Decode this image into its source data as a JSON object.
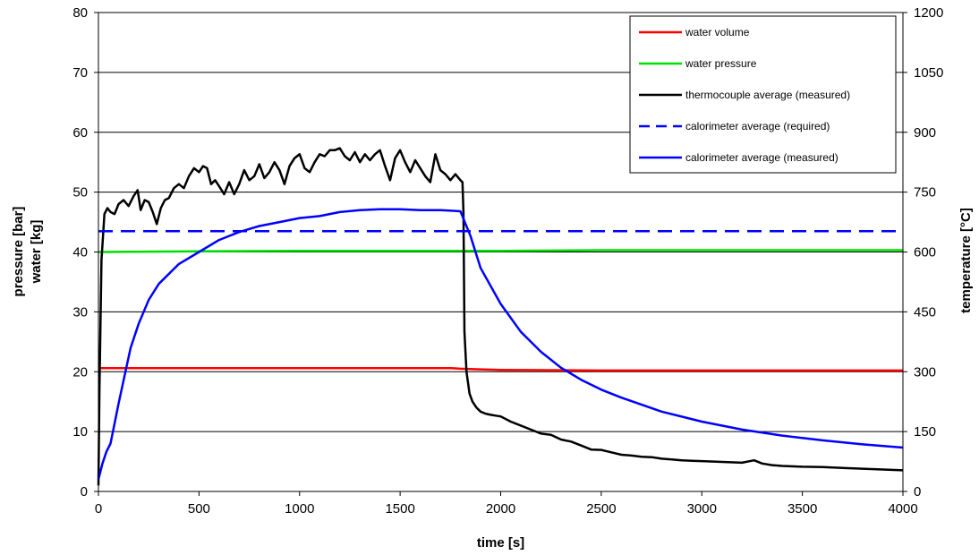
{
  "chart_data": {
    "type": "line",
    "title": "",
    "xlabel": "time [s]",
    "ylabel_left_lines": [
      "pressure [bar]",
      "water [kg]"
    ],
    "ylabel_right": "temperature [°C]",
    "xlim": [
      0,
      4000
    ],
    "ylim_left": [
      0,
      80
    ],
    "ylim_right": [
      0,
      1200
    ],
    "x_ticks": [
      "0",
      "500",
      "1000",
      "1500",
      "2000",
      "2500",
      "3000",
      "3500",
      "4000"
    ],
    "y_left_ticks": [
      "0",
      "10",
      "20",
      "30",
      "40",
      "50",
      "60",
      "70",
      "80"
    ],
    "y_right_ticks": [
      "0",
      "150",
      "300",
      "450",
      "600",
      "750",
      "900",
      "1050",
      "1200"
    ],
    "grid": "horizontal",
    "legend_position": "top-right",
    "series": [
      {
        "name": "water volume",
        "axis": "left",
        "color": "#ff0000",
        "dash": "solid",
        "x": [
          0,
          20,
          500,
          1000,
          1500,
          1750,
          1800,
          1900,
          2000,
          2500,
          3000,
          3500,
          4000
        ],
        "y": [
          20.6,
          20.6,
          20.6,
          20.6,
          20.6,
          20.6,
          20.5,
          20.4,
          20.3,
          20.2,
          20.2,
          20.2,
          20.2
        ]
      },
      {
        "name": "water pressure",
        "axis": "left",
        "color": "#00e000",
        "dash": "solid",
        "x": [
          0,
          20,
          500,
          1000,
          1500,
          2000,
          2500,
          3000,
          3500,
          4000
        ],
        "y": [
          40.0,
          40.0,
          40.1,
          40.2,
          40.2,
          40.2,
          40.3,
          40.3,
          40.3,
          40.3
        ]
      },
      {
        "name": "thermocouple average (measured)",
        "axis": "right",
        "color": "#000000",
        "dash": "solid",
        "x": [
          0,
          5,
          15,
          30,
          45,
          60,
          80,
          100,
          125,
          150,
          175,
          195,
          210,
          230,
          250,
          270,
          290,
          310,
          330,
          350,
          375,
          400,
          425,
          450,
          475,
          500,
          520,
          540,
          560,
          580,
          600,
          625,
          650,
          675,
          700,
          725,
          750,
          775,
          800,
          825,
          850,
          875,
          900,
          925,
          950,
          975,
          1000,
          1025,
          1050,
          1075,
          1100,
          1125,
          1150,
          1175,
          1200,
          1225,
          1250,
          1275,
          1300,
          1325,
          1350,
          1375,
          1400,
          1425,
          1450,
          1475,
          1500,
          1525,
          1550,
          1575,
          1600,
          1625,
          1650,
          1675,
          1700,
          1725,
          1750,
          1775,
          1800,
          1810,
          1815,
          1820,
          1830,
          1845,
          1860,
          1880,
          1900,
          1925,
          1950,
          1975,
          2000,
          2050,
          2100,
          2150,
          2200,
          2250,
          2300,
          2350,
          2400,
          2450,
          2500,
          2550,
          2600,
          2650,
          2700,
          2750,
          2800,
          2850,
          2900,
          2950,
          3000,
          3100,
          3200,
          3260,
          3300,
          3350,
          3400,
          3500,
          3600,
          3700,
          3800,
          3900,
          4000
        ],
        "y": [
          15,
          250,
          580,
          695,
          710,
          700,
          695,
          720,
          730,
          715,
          740,
          755,
          705,
          730,
          725,
          700,
          670,
          710,
          730,
          735,
          760,
          770,
          760,
          790,
          810,
          800,
          815,
          810,
          770,
          780,
          765,
          745,
          775,
          745,
          770,
          805,
          780,
          790,
          820,
          785,
          800,
          825,
          805,
          770,
          815,
          835,
          845,
          810,
          800,
          825,
          845,
          840,
          855,
          855,
          860,
          840,
          830,
          850,
          825,
          845,
          830,
          845,
          855,
          815,
          780,
          835,
          855,
          825,
          800,
          830,
          810,
          790,
          775,
          845,
          805,
          795,
          780,
          795,
          780,
          775,
          700,
          400,
          300,
          245,
          225,
          210,
          200,
          195,
          192,
          190,
          188,
          175,
          165,
          155,
          145,
          142,
          130,
          125,
          115,
          105,
          104,
          98,
          92,
          90,
          87,
          86,
          82,
          80,
          78,
          77,
          76,
          74,
          72,
          78,
          70,
          66,
          64,
          62,
          61,
          59,
          57,
          55,
          53
        ]
      },
      {
        "name": "calorimeter average (required)",
        "axis": "right",
        "color": "#0000ff",
        "dash": "dashed",
        "x": [
          0,
          4000
        ],
        "y": [
          652,
          652
        ]
      },
      {
        "name": "calorimeter average (measured)",
        "axis": "right",
        "color": "#0000ff",
        "dash": "solid",
        "x": [
          0,
          20,
          40,
          60,
          80,
          100,
          130,
          160,
          200,
          250,
          300,
          400,
          500,
          600,
          700,
          800,
          900,
          1000,
          1100,
          1200,
          1300,
          1400,
          1500,
          1600,
          1700,
          1800,
          1850,
          1900,
          2000,
          2100,
          2200,
          2300,
          2400,
          2500,
          2600,
          2800,
          3000,
          3200,
          3400,
          3600,
          3800,
          4000
        ],
        "y": [
          30,
          70,
          100,
          120,
          170,
          220,
          290,
          360,
          420,
          480,
          520,
          570,
          600,
          630,
          650,
          665,
          675,
          685,
          690,
          700,
          705,
          707,
          707,
          705,
          705,
          702,
          640,
          560,
          470,
          400,
          350,
          310,
          280,
          255,
          235,
          200,
          175,
          155,
          140,
          128,
          118,
          110
        ]
      }
    ]
  }
}
